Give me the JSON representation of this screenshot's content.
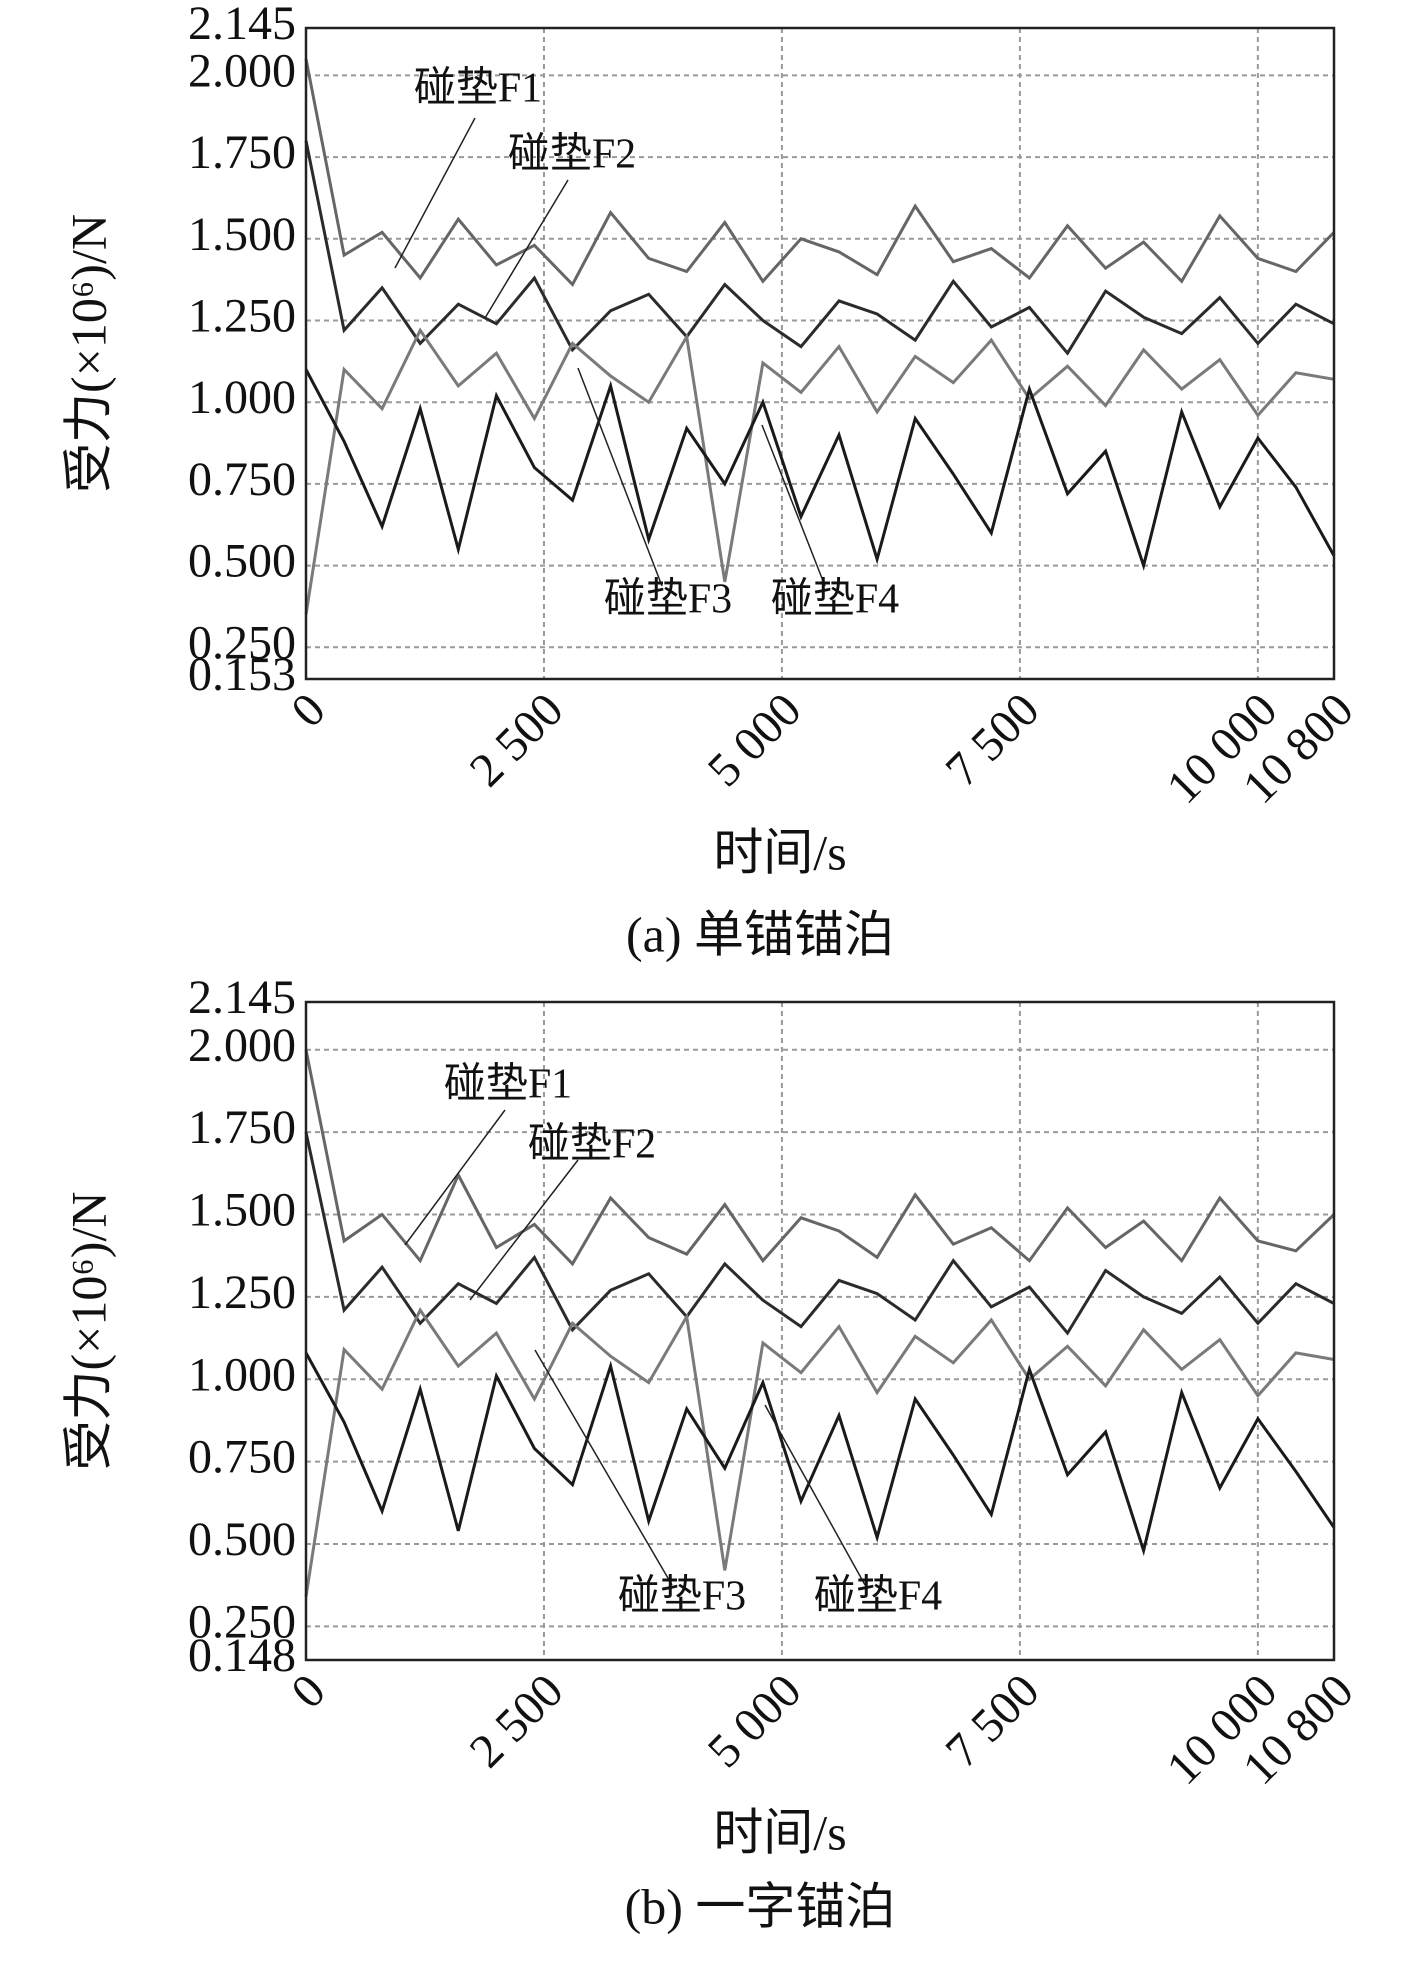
{
  "chart_data": [
    {
      "type": "line",
      "title": "(a) 单锚锚泊",
      "xlabel": "时间/s",
      "ylabel": "受力(×10⁶)/N",
      "x": [
        0,
        400,
        800,
        1200,
        1600,
        2000,
        2400,
        2800,
        3200,
        3600,
        4000,
        4400,
        4800,
        5200,
        5600,
        6000,
        6400,
        6800,
        7200,
        7600,
        8000,
        8400,
        8800,
        9200,
        9600,
        10000,
        10400,
        10800
      ],
      "series": [
        {
          "name": "碰垫F1",
          "color": "#666666",
          "values": [
            2.05,
            1.45,
            1.52,
            1.38,
            1.56,
            1.42,
            1.48,
            1.36,
            1.58,
            1.44,
            1.4,
            1.55,
            1.37,
            1.5,
            1.46,
            1.39,
            1.6,
            1.43,
            1.47,
            1.38,
            1.54,
            1.41,
            1.49,
            1.37,
            1.57,
            1.44,
            1.4,
            1.52
          ]
        },
        {
          "name": "碰垫F2",
          "color": "#2b2b2b",
          "values": [
            1.8,
            1.22,
            1.35,
            1.18,
            1.3,
            1.24,
            1.38,
            1.16,
            1.28,
            1.33,
            1.2,
            1.36,
            1.25,
            1.17,
            1.31,
            1.27,
            1.19,
            1.37,
            1.23,
            1.29,
            1.15,
            1.34,
            1.26,
            1.21,
            1.32,
            1.18,
            1.3,
            1.24
          ]
        },
        {
          "name": "碰垫F3",
          "color": "#7a7a7a",
          "values": [
            0.35,
            1.1,
            0.98,
            1.22,
            1.05,
            1.15,
            0.95,
            1.18,
            1.08,
            1.0,
            1.2,
            0.45,
            1.12,
            1.03,
            1.17,
            0.97,
            1.14,
            1.06,
            1.19,
            1.01,
            1.11,
            0.99,
            1.16,
            1.04,
            1.13,
            0.96,
            1.09,
            1.07
          ]
        },
        {
          "name": "碰垫F4",
          "color": "#1a1a1a",
          "values": [
            1.1,
            0.88,
            0.62,
            0.98,
            0.55,
            1.02,
            0.8,
            0.7,
            1.05,
            0.58,
            0.92,
            0.75,
            1.0,
            0.65,
            0.9,
            0.52,
            0.95,
            0.78,
            0.6,
            1.04,
            0.72,
            0.85,
            0.5,
            0.97,
            0.68,
            0.89,
            0.74,
            0.53
          ]
        }
      ],
      "xlim": [
        0,
        10800
      ],
      "xticks": [
        0,
        {
          "value": 2500,
          "label": "2 500"
        },
        {
          "value": 5000,
          "label": "5 000"
        },
        {
          "value": 7500,
          "label": "7 500"
        },
        {
          "value": 10000,
          "label": "10 000"
        },
        {
          "value": 10800,
          "label": "10 800"
        }
      ],
      "ylim": [
        0.153,
        2.145
      ],
      "yticks": [
        0.153,
        {
          "value": 0.25,
          "label": "0.250"
        },
        {
          "value": 0.5,
          "label": "0.500"
        },
        {
          "value": 0.75,
          "label": "0.750"
        },
        {
          "value": 1,
          "label": "1.000"
        },
        {
          "value": 1.25,
          "label": "1.250"
        },
        {
          "value": 1.5,
          "label": "1.500"
        },
        {
          "value": 1.75,
          "label": "1.750"
        },
        {
          "value": 2,
          "label": "2.000"
        },
        2.145
      ],
      "grid": true
    },
    {
      "type": "line",
      "title": "(b) 一字锚泊",
      "xlabel": "时间/s",
      "ylabel": "受力(×10⁶)/N",
      "x": [
        0,
        400,
        800,
        1200,
        1600,
        2000,
        2400,
        2800,
        3200,
        3600,
        4000,
        4400,
        4800,
        5200,
        5600,
        6000,
        6400,
        6800,
        7200,
        7600,
        8000,
        8400,
        8800,
        9200,
        9600,
        10000,
        10400,
        10800
      ],
      "series": [
        {
          "name": "碰垫F1",
          "color": "#666666",
          "values": [
            2.0,
            1.42,
            1.5,
            1.36,
            1.62,
            1.4,
            1.47,
            1.35,
            1.55,
            1.43,
            1.38,
            1.53,
            1.36,
            1.49,
            1.45,
            1.37,
            1.56,
            1.41,
            1.46,
            1.36,
            1.52,
            1.4,
            1.48,
            1.36,
            1.55,
            1.42,
            1.39,
            1.5
          ]
        },
        {
          "name": "碰垫F2",
          "color": "#2b2b2b",
          "values": [
            1.75,
            1.21,
            1.34,
            1.17,
            1.29,
            1.23,
            1.37,
            1.15,
            1.27,
            1.32,
            1.19,
            1.35,
            1.24,
            1.16,
            1.3,
            1.26,
            1.18,
            1.36,
            1.22,
            1.28,
            1.14,
            1.33,
            1.25,
            1.2,
            1.31,
            1.17,
            1.29,
            1.23
          ]
        },
        {
          "name": "碰垫F3",
          "color": "#7a7a7a",
          "values": [
            0.34,
            1.09,
            0.97,
            1.21,
            1.04,
            1.14,
            0.94,
            1.17,
            1.07,
            0.99,
            1.19,
            0.42,
            1.11,
            1.02,
            1.16,
            0.96,
            1.13,
            1.05,
            1.18,
            1.0,
            1.1,
            0.98,
            1.15,
            1.03,
            1.12,
            0.95,
            1.08,
            1.06
          ]
        },
        {
          "name": "碰垫F4",
          "color": "#1a1a1a",
          "values": [
            1.08,
            0.87,
            0.6,
            0.97,
            0.54,
            1.01,
            0.79,
            0.68,
            1.04,
            0.57,
            0.91,
            0.73,
            0.99,
            0.63,
            0.89,
            0.52,
            0.94,
            0.77,
            0.59,
            1.03,
            0.71,
            0.84,
            0.48,
            0.96,
            0.67,
            0.88,
            0.72,
            0.55
          ]
        }
      ],
      "xlim": [
        0,
        10800
      ],
      "xticks": [
        0,
        {
          "value": 2500,
          "label": "2 500"
        },
        {
          "value": 5000,
          "label": "5 000"
        },
        {
          "value": 7500,
          "label": "7 500"
        },
        {
          "value": 10000,
          "label": "10 000"
        },
        {
          "value": 10800,
          "label": "10 800"
        }
      ],
      "ylim": [
        0.148,
        2.145
      ],
      "yticks": [
        0.148,
        {
          "value": 0.25,
          "label": "0.250"
        },
        {
          "value": 0.5,
          "label": "0.500"
        },
        {
          "value": 0.75,
          "label": "0.750"
        },
        {
          "value": 1,
          "label": "1.000"
        },
        {
          "value": 1.25,
          "label": "1.250"
        },
        {
          "value": 1.5,
          "label": "1.500"
        },
        {
          "value": 1.75,
          "label": "1.750"
        },
        {
          "value": 2,
          "label": "2.000"
        },
        2.145
      ],
      "grid": true
    }
  ]
}
